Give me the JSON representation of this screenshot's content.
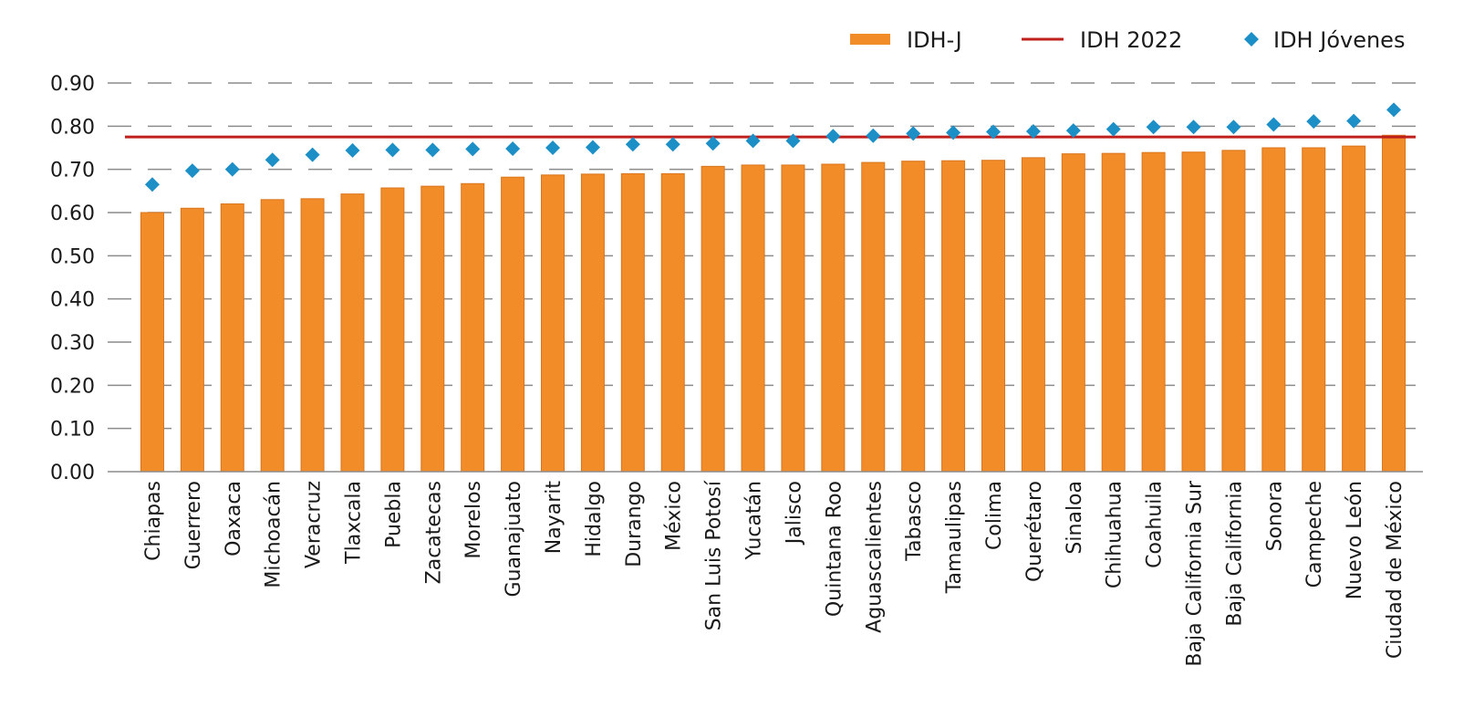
{
  "chart_data": {
    "type": "bar",
    "title": "",
    "xlabel": "",
    "ylabel": "",
    "ylim": [
      0,
      0.9
    ],
    "yticks": [
      "0.00",
      "0.10",
      "0.20",
      "0.30",
      "0.40",
      "0.50",
      "0.60",
      "0.70",
      "0.80",
      "0.90"
    ],
    "grid": "dashed horizontal",
    "legend_position": "top-right",
    "categories": [
      "Chiapas",
      "Guerrero",
      "Oaxaca",
      "Michoacán",
      "Veracruz",
      "Tlaxcala",
      "Puebla",
      "Zacatecas",
      "Morelos",
      "Guanajuato",
      "Nayarit",
      "Hidalgo",
      "Durango",
      "México",
      "San Luis Potosí",
      "Yucatán",
      "Jalisco",
      "Quintana Roo",
      "Aguascalientes",
      "Tabasco",
      "Tamaulipas",
      "Colima",
      "Querétaro",
      "Sinaloa",
      "Chihuahua",
      "Coahuila",
      "Baja California Sur",
      "Baja California",
      "Sonora",
      "Campeche",
      "Nuevo León",
      "Ciudad de México"
    ],
    "series": [
      {
        "name": "IDH-J",
        "kind": "bar",
        "color": "#f28c28",
        "values": [
          0.6,
          0.61,
          0.62,
          0.63,
          0.632,
          0.643,
          0.657,
          0.661,
          0.667,
          0.682,
          0.687,
          0.689,
          0.69,
          0.69,
          0.707,
          0.71,
          0.71,
          0.712,
          0.716,
          0.719,
          0.72,
          0.721,
          0.727,
          0.736,
          0.737,
          0.739,
          0.74,
          0.744,
          0.75,
          0.75,
          0.754,
          0.779
        ]
      },
      {
        "name": "IDH 2022",
        "kind": "hline",
        "color": "#c0201c",
        "value": 0.775
      },
      {
        "name": "IDH Jóvenes",
        "kind": "marker",
        "color": "#1c8fc7",
        "values": [
          0.665,
          0.697,
          0.7,
          0.722,
          0.734,
          0.744,
          0.745,
          0.745,
          0.747,
          0.748,
          0.75,
          0.751,
          0.758,
          0.758,
          0.76,
          0.766,
          0.766,
          0.777,
          0.778,
          0.783,
          0.785,
          0.787,
          0.788,
          0.79,
          0.793,
          0.798,
          0.798,
          0.798,
          0.804,
          0.811,
          0.812,
          0.838
        ]
      }
    ]
  }
}
